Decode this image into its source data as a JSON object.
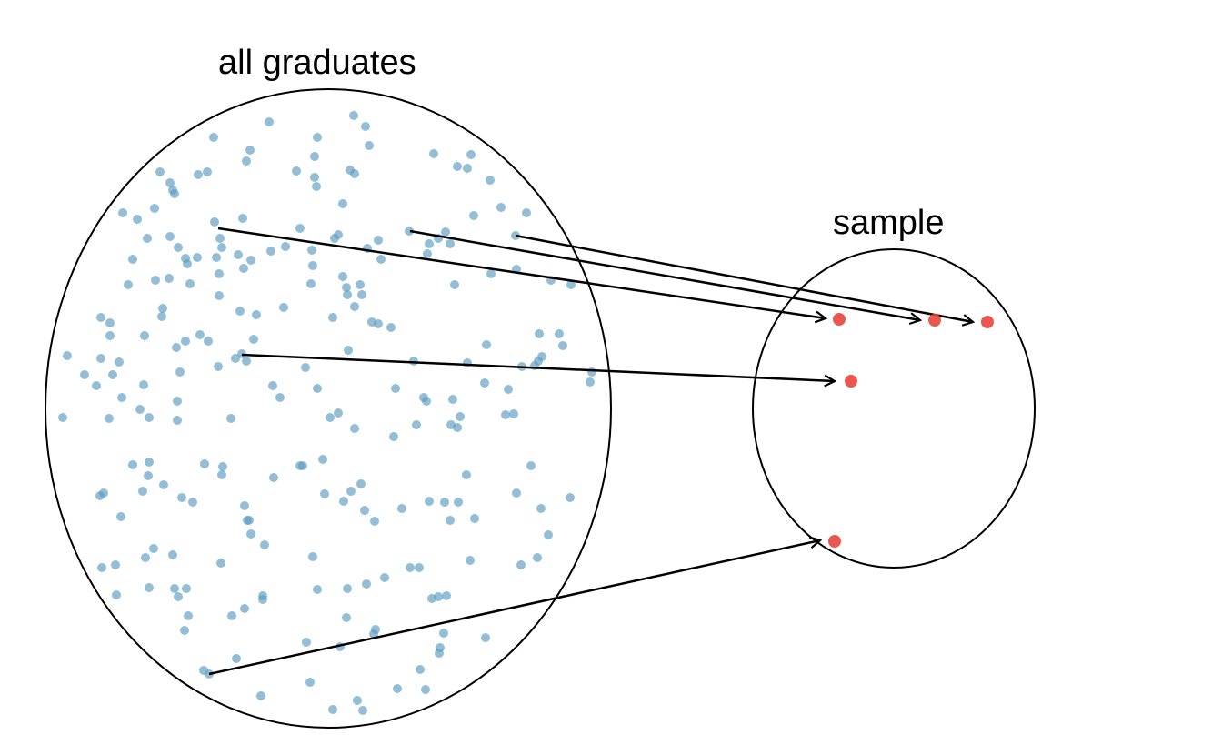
{
  "labels": {
    "population": "all graduates",
    "sample": "sample"
  },
  "colors": {
    "population_dot": "#5b9bbf",
    "sample_dot": "#e8453c",
    "outline": "#000000",
    "arrow": "#000000"
  }
}
